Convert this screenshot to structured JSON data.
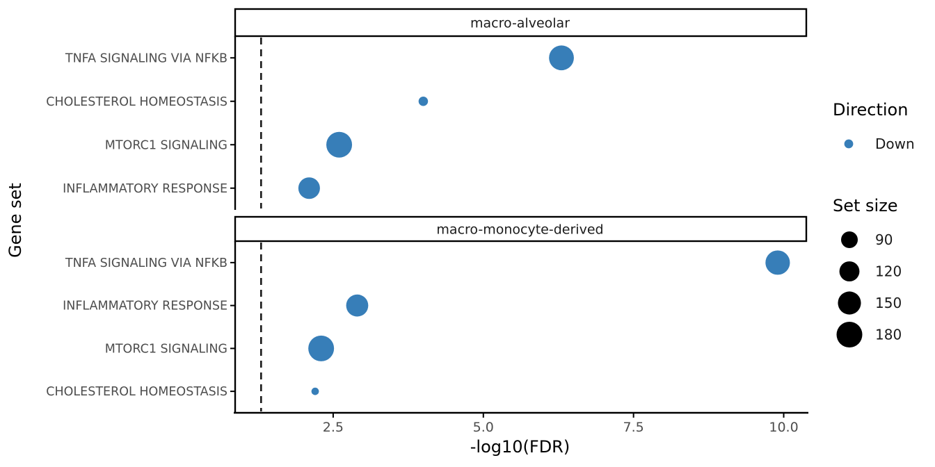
{
  "chart_data": {
    "type": "scatter",
    "subtype": "faceted-bubble-dotplot",
    "title": "",
    "xlabel": "-log10(FDR)",
    "ylabel": "Gene set",
    "xlim": [
      0.868,
      10.353
    ],
    "x_ticks": [
      {
        "value": 2.5,
        "label": "2.5"
      },
      {
        "value": 5.0,
        "label": "5.0"
      },
      {
        "value": 7.5,
        "label": "7.5"
      },
      {
        "value": 10.0,
        "label": "10.0"
      }
    ],
    "grid": false,
    "threshold_line": {
      "x": 1.3,
      "style": "dashed",
      "color": "#1a1a1a"
    },
    "facets": [
      {
        "label": "macro-alveolar",
        "rows": [
          {
            "gene_set": "TNFA SIGNALING VIA NFKB",
            "x": 6.3,
            "set_size": 170,
            "direction": "Down"
          },
          {
            "gene_set": "CHOLESTEROL HOMEOSTASIS",
            "x": 4.0,
            "set_size": 40,
            "direction": "Down"
          },
          {
            "gene_set": "MTORC1 SIGNALING",
            "x": 2.6,
            "set_size": 180,
            "direction": "Down"
          },
          {
            "gene_set": "INFLAMMATORY RESPONSE",
            "x": 2.1,
            "set_size": 135,
            "direction": "Down"
          }
        ]
      },
      {
        "label": "macro-monocyte-derived",
        "rows": [
          {
            "gene_set": "TNFA SIGNALING VIA NFKB",
            "x": 9.9,
            "set_size": 165,
            "direction": "Down"
          },
          {
            "gene_set": "INFLAMMATORY RESPONSE",
            "x": 2.9,
            "set_size": 140,
            "direction": "Down"
          },
          {
            "gene_set": "MTORC1 SIGNALING",
            "x": 2.3,
            "set_size": 180,
            "direction": "Down"
          },
          {
            "gene_set": "CHOLESTEROL HOMEOSTASIS",
            "x": 2.2,
            "set_size": 30,
            "direction": "Down"
          }
        ]
      }
    ],
    "legend": {
      "direction": {
        "title": "Direction",
        "items": [
          {
            "label": "Down",
            "color": "#377EB8"
          }
        ]
      },
      "set_size": {
        "title": "Set size",
        "items": [
          {
            "label": "90",
            "value": 90
          },
          {
            "label": "120",
            "value": 120
          },
          {
            "label": "150",
            "value": 150
          },
          {
            "label": "180",
            "value": 180
          }
        ],
        "swatch_color": "#000000"
      }
    },
    "colors": {
      "point": "#377EB8",
      "axis_line": "#000000",
      "tick_label": "#4d4d4d",
      "category_label": "#4d4d4d",
      "strip_border": "#000000",
      "strip_text": "#1a1a1a",
      "axis_title": "#000000",
      "background": "#ffffff"
    }
  }
}
